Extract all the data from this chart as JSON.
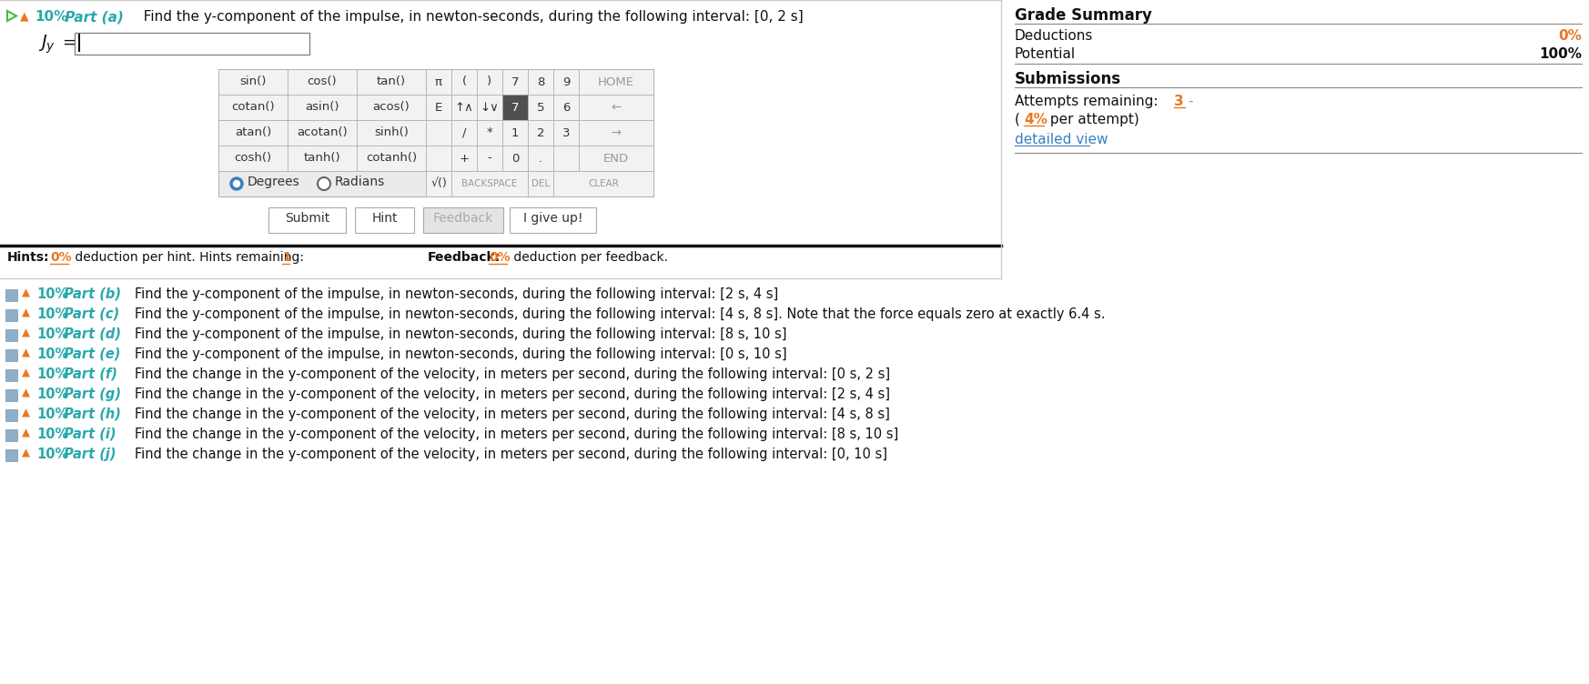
{
  "bg_color": "#ffffff",
  "orange_color": "#e87722",
  "blue_color": "#3a7ebf",
  "teal_color": "#29a8ab",
  "cell_bg": "#e8e8e8",
  "cell_white": "#f8f8f8",
  "grade_title": "Grade Summary",
  "deductions_label": "Deductions",
  "deductions_value": "0%",
  "potential_label": "Potential",
  "potential_value": "100%",
  "submissions_title": "Submissions",
  "attempts_label": "Attempts remaining:",
  "attempts_value": "3",
  "detailed_link": "detailed view",
  "parts": [
    {
      "label": "10% Part (b)",
      "text": "Find the y-component of the impulse, in newton-seconds, during the following interval: [2 s, 4 s]"
    },
    {
      "label": "10% Part (c)",
      "text": "Find the y-component of the impulse, in newton-seconds, during the following interval: [4 s, 8 s]. Note that the force equals zero at exactly 6.4 s."
    },
    {
      "label": "10% Part (d)",
      "text": "Find the y-component of the impulse, in newton-seconds, during the following interval: [8 s, 10 s]"
    },
    {
      "label": "10% Part (e)",
      "text": "Find the y-component of the impulse, in newton-seconds, during the following interval: [0 s, 10 s]"
    },
    {
      "label": "10% Part (f)",
      "text": "Find the change in the y-component of the velocity, in meters per second, during the following interval: [0 s, 2 s]"
    },
    {
      "label": "10% Part (g)",
      "text": "Find the change in the y-component of the velocity, in meters per second, during the following interval: [2 s, 4 s]"
    },
    {
      "label": "10% Part (h)",
      "text": "Find the change in the y-component of the velocity, in meters per second, during the following interval: [4 s, 8 s]"
    },
    {
      "label": "10% Part (i)",
      "text": "Find the change in the y-component of the velocity, in meters per second, during the following interval: [8 s, 10 s]"
    },
    {
      "label": "10% Part (j)",
      "text": "Find the change in the y-component of the velocity, in meters per second, during the following interval: [0, 10 s]"
    }
  ]
}
